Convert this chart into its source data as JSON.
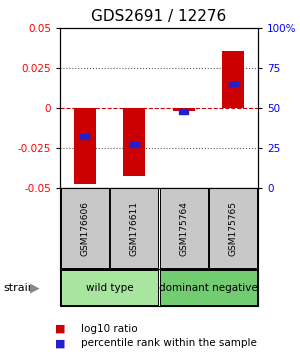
{
  "title": "GDS2691 / 12276",
  "samples": [
    "GSM176606",
    "GSM176611",
    "GSM175764",
    "GSM175765"
  ],
  "log10_ratio": [
    -0.048,
    -0.043,
    -0.002,
    0.036
  ],
  "percentile_rank": [
    0.32,
    0.27,
    0.48,
    0.65
  ],
  "ylim": [
    -0.05,
    0.05
  ],
  "yticks_left": [
    -0.05,
    -0.025,
    0,
    0.025,
    0.05
  ],
  "yticks_left_labels": [
    "-0.05",
    "-0.025",
    "0",
    "0.025",
    "0.05"
  ],
  "yticks_right": [
    0,
    25,
    50,
    75,
    100
  ],
  "yticks_right_labels": [
    "0",
    "25",
    "50",
    "75",
    "100%"
  ],
  "groups": [
    {
      "label": "wild type",
      "color": "#a8e6a0",
      "samples": [
        0,
        1
      ]
    },
    {
      "label": "dominant negative",
      "color": "#72cc72",
      "samples": [
        2,
        3
      ]
    }
  ],
  "bar_color_red": "#cc0000",
  "bar_color_blue": "#2020cc",
  "dotted_color": "#555555",
  "zero_line_color": "#cc0000",
  "sample_bg_color": "#c8c8c8",
  "title_fontsize": 11,
  "tick_fontsize": 7.5,
  "sample_fontsize": 6.5,
  "group_fontsize": 7.5,
  "legend_fontsize": 7.5
}
